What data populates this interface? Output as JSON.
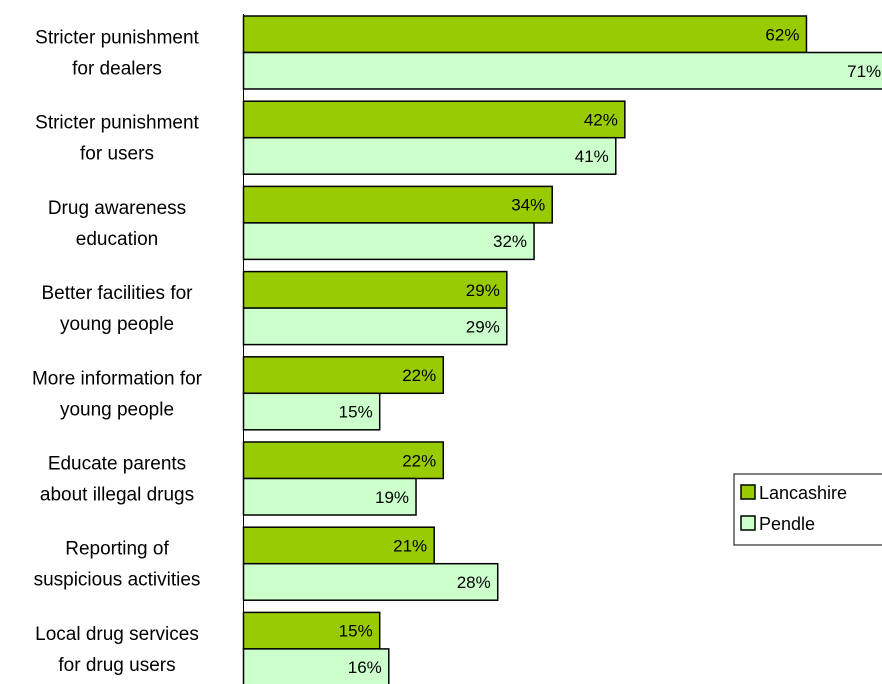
{
  "chart_data": {
    "type": "bar",
    "orientation": "horizontal",
    "categories": [
      [
        "Stricter punishment",
        "for dealers"
      ],
      [
        "Stricter punishment",
        "for users"
      ],
      [
        "Drug awareness",
        "education"
      ],
      [
        "Better facilities for",
        "young people"
      ],
      [
        "More information for",
        "young people"
      ],
      [
        "Educate parents",
        "about illegal drugs"
      ],
      [
        "Reporting of",
        "suspicious activities"
      ],
      [
        "Local drug services",
        "for drug users"
      ]
    ],
    "series": [
      {
        "name": "Lancashire",
        "color": "#99cc00",
        "values": [
          62,
          42,
          34,
          29,
          22,
          22,
          21,
          15
        ]
      },
      {
        "name": "Pendle",
        "color": "#ccffcc",
        "values": [
          71,
          41,
          32,
          29,
          15,
          19,
          28,
          16
        ]
      }
    ],
    "value_suffix": "%",
    "xlim": [
      0,
      70
    ],
    "legend_position": "right",
    "grid": false
  }
}
